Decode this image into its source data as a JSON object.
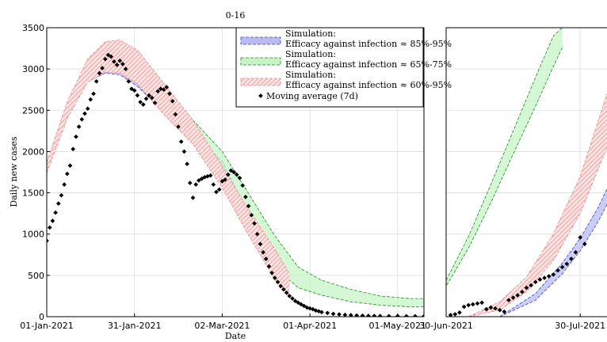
{
  "chart_data": [
    {
      "type": "line",
      "title": "0-16",
      "xlabel": "Date",
      "ylabel": "Daily new cases",
      "ylim": [
        0,
        3500
      ],
      "xlim": [
        "2021-01-01",
        "2021-05-10"
      ],
      "grid": true,
      "legend_position": "top-right",
      "x_ticks": [
        "2021-01-01",
        "2021-01-31",
        "2021-03-02",
        "2021-04-01",
        "2021-05-01"
      ],
      "x_tick_labels": [
        "01-Jan-2021",
        "31-Jan-2021",
        "02-Mar-2021",
        "01-Apr-2021",
        "01-May-2021"
      ],
      "y_ticks": [
        0,
        500,
        1000,
        1500,
        2000,
        2500,
        3000,
        3500
      ],
      "y_tick_labels": [
        "0",
        "500",
        "1000",
        "1500",
        "2000",
        "2500",
        "3000",
        "3500"
      ],
      "bands": [
        {
          "name": "Simulation:\nEfficacy against infection ≈ 85%-95%",
          "color": "#3d3dd6",
          "fill": "#b8bcf2",
          "pattern": "solid",
          "x": [
            "2021-01-01",
            "2021-01-08",
            "2021-01-15",
            "2021-01-21",
            "2021-01-26",
            "2021-02-01",
            "2021-02-10",
            "2021-02-20",
            "2021-03-02",
            "2021-03-08",
            "2021-03-15",
            "2021-03-20",
            "2021-03-25"
          ],
          "upper": [
            1800,
            2480,
            2900,
            3010,
            2990,
            2860,
            2550,
            2220,
            1880,
            1460,
            1000,
            650,
            400
          ],
          "lower": [
            1780,
            2430,
            2850,
            2950,
            2930,
            2790,
            2480,
            2150,
            1760,
            1360,
            930,
            600,
            360
          ]
        },
        {
          "name": "Simulation:\nEfficacy against infection ≈ 65%-75%",
          "color": "#1e8a1e",
          "fill": "#c6f4c6",
          "pattern": "solid",
          "x": [
            "2021-01-01",
            "2021-01-08",
            "2021-01-15",
            "2021-01-21",
            "2021-01-26",
            "2021-02-01",
            "2021-02-10",
            "2021-02-20",
            "2021-03-02",
            "2021-03-10",
            "2021-03-20",
            "2021-03-28",
            "2021-04-05",
            "2021-04-15",
            "2021-04-25",
            "2021-05-05",
            "2021-05-10"
          ],
          "upper": [
            1850,
            2560,
            3030,
            3250,
            3290,
            3170,
            2800,
            2380,
            2000,
            1550,
            980,
            600,
            440,
            330,
            250,
            220,
            220
          ],
          "lower": [
            1820,
            2500,
            2950,
            3130,
            3130,
            3000,
            2650,
            2240,
            1700,
            1150,
            600,
            350,
            260,
            180,
            140,
            120,
            120
          ]
        },
        {
          "name": "Simulation:\nEfficacy against infection ≈ 60%-95%",
          "color": "#e88a8a",
          "fill": "#f8c8c8",
          "pattern": "hatch",
          "x": [
            "2021-01-01",
            "2021-01-08",
            "2021-01-15",
            "2021-01-21",
            "2021-01-26",
            "2021-02-01",
            "2021-02-10",
            "2021-02-20",
            "2021-03-02",
            "2021-03-10",
            "2021-03-20",
            "2021-03-25"
          ],
          "upper": [
            1870,
            2600,
            3120,
            3330,
            3350,
            3230,
            2830,
            2380,
            1820,
            1350,
            820,
            520
          ],
          "lower": [
            1740,
            2400,
            2840,
            2960,
            2950,
            2820,
            2450,
            2090,
            1560,
            1050,
            450,
            260
          ]
        }
      ],
      "scatter": {
        "name": "Moving average (7d)",
        "color": "#000000",
        "x": [
          "2021-01-01",
          "2021-01-02",
          "2021-01-03",
          "2021-01-04",
          "2021-01-05",
          "2021-01-06",
          "2021-01-07",
          "2021-01-08",
          "2021-01-09",
          "2021-01-10",
          "2021-01-11",
          "2021-01-12",
          "2021-01-13",
          "2021-01-14",
          "2021-01-15",
          "2021-01-16",
          "2021-01-17",
          "2021-01-18",
          "2021-01-19",
          "2021-01-20",
          "2021-01-21",
          "2021-01-22",
          "2021-01-23",
          "2021-01-24",
          "2021-01-25",
          "2021-01-26",
          "2021-01-27",
          "2021-01-28",
          "2021-01-29",
          "2021-01-30",
          "2021-01-31",
          "2021-02-01",
          "2021-02-02",
          "2021-02-03",
          "2021-02-04",
          "2021-02-05",
          "2021-02-06",
          "2021-02-07",
          "2021-02-08",
          "2021-02-09",
          "2021-02-10",
          "2021-02-11",
          "2021-02-12",
          "2021-02-13",
          "2021-02-14",
          "2021-02-15",
          "2021-02-16",
          "2021-02-17",
          "2021-02-18",
          "2021-02-19",
          "2021-02-20",
          "2021-02-21",
          "2021-02-22",
          "2021-02-23",
          "2021-02-24",
          "2021-02-25",
          "2021-02-26",
          "2021-02-27",
          "2021-02-28",
          "2021-03-01",
          "2021-03-02",
          "2021-03-03",
          "2021-03-04",
          "2021-03-05",
          "2021-03-06",
          "2021-03-07",
          "2021-03-08",
          "2021-03-09",
          "2021-03-10",
          "2021-03-11",
          "2021-03-12",
          "2021-03-13",
          "2021-03-14",
          "2021-03-15",
          "2021-03-16",
          "2021-03-17",
          "2021-03-18",
          "2021-03-19",
          "2021-03-20",
          "2021-03-21",
          "2021-03-22",
          "2021-03-23",
          "2021-03-24",
          "2021-03-25",
          "2021-03-26",
          "2021-03-27",
          "2021-03-28",
          "2021-03-29",
          "2021-03-30",
          "2021-03-31",
          "2021-04-01",
          "2021-04-02",
          "2021-04-03",
          "2021-04-04",
          "2021-04-05",
          "2021-04-07",
          "2021-04-09",
          "2021-04-11",
          "2021-04-13",
          "2021-04-15",
          "2021-04-17",
          "2021-04-19",
          "2021-04-21",
          "2021-04-23",
          "2021-04-25",
          "2021-04-28",
          "2021-05-01",
          "2021-05-04",
          "2021-05-07",
          "2021-05-10"
        ],
        "y": [
          920,
          1080,
          1160,
          1260,
          1370,
          1470,
          1600,
          1730,
          1830,
          2030,
          2180,
          2300,
          2390,
          2460,
          2520,
          2630,
          2700,
          2850,
          2950,
          3010,
          3120,
          3170,
          3150,
          3090,
          3050,
          3100,
          3060,
          3000,
          2850,
          2760,
          2740,
          2680,
          2600,
          2570,
          2640,
          2680,
          2650,
          2590,
          2730,
          2760,
          2750,
          2780,
          2700,
          2610,
          2450,
          2300,
          2120,
          2000,
          1850,
          1620,
          1440,
          1600,
          1650,
          1670,
          1690,
          1700,
          1710,
          1600,
          1510,
          1540,
          1640,
          1660,
          1720,
          1770,
          1750,
          1720,
          1680,
          1590,
          1450,
          1340,
          1230,
          1130,
          1000,
          880,
          780,
          700,
          610,
          530,
          470,
          420,
          370,
          330,
          290,
          250,
          220,
          190,
          170,
          150,
          130,
          110,
          100,
          90,
          75,
          65,
          55,
          45,
          35,
          28,
          22,
          18,
          14,
          12,
          10,
          9,
          8,
          7,
          7,
          6,
          6,
          6
        ]
      }
    },
    {
      "type": "line",
      "title": "",
      "xlabel": "",
      "ylabel": "",
      "ylim": [
        0,
        3500
      ],
      "xlim": [
        "2021-06-30",
        "2021-08-05"
      ],
      "grid": true,
      "x_ticks": [
        "2021-06-30",
        "2021-07-30"
      ],
      "x_tick_labels": [
        "30-Jun-2021",
        "30-Jul-2021"
      ],
      "bands": [
        {
          "name": "Simulation:\nEfficacy against infection ≈ 85%-95%",
          "color": "#3d3dd6",
          "fill": "#b8bcf2",
          "pattern": "solid",
          "x": [
            "2021-07-12",
            "2021-07-20",
            "2021-07-26",
            "2021-07-30",
            "2021-08-03",
            "2021-08-05"
          ],
          "upper": [
            0,
            280,
            650,
            950,
            1320,
            1550
          ],
          "lower": [
            0,
            200,
            520,
            800,
            1150,
            1360
          ]
        },
        {
          "name": "Simulation:\nEfficacy against infection ≈ 65%-75%",
          "color": "#1e8a1e",
          "fill": "#c6f4c6",
          "pattern": "solid",
          "x": [
            "2021-06-30",
            "2021-07-05",
            "2021-07-10",
            "2021-07-15",
            "2021-07-20",
            "2021-07-24",
            "2021-07-26"
          ],
          "upper": [
            440,
            970,
            1600,
            2250,
            2900,
            3400,
            3500
          ],
          "lower": [
            370,
            830,
            1380,
            1970,
            2550,
            3030,
            3260
          ]
        },
        {
          "name": "Simulation:\nEfficacy against infection ≈ 60%-95%",
          "color": "#e88a8a",
          "fill": "#f8c8c8",
          "pattern": "hatch",
          "x": [
            "2021-07-05",
            "2021-07-12",
            "2021-07-18",
            "2021-07-24",
            "2021-07-30",
            "2021-08-05"
          ],
          "upper": [
            0,
            180,
            480,
            1000,
            1700,
            2700
          ],
          "lower": [
            0,
            80,
            300,
            680,
            1250,
            2050
          ]
        }
      ],
      "scatter": {
        "name": "Moving average (7d)",
        "color": "#000000",
        "x": [
          "2021-07-01",
          "2021-07-02",
          "2021-07-03",
          "2021-07-04",
          "2021-07-05",
          "2021-07-06",
          "2021-07-07",
          "2021-07-08",
          "2021-07-09",
          "2021-07-10",
          "2021-07-11",
          "2021-07-12",
          "2021-07-13",
          "2021-07-14",
          "2021-07-15",
          "2021-07-16",
          "2021-07-17",
          "2021-07-18",
          "2021-07-19",
          "2021-07-20",
          "2021-07-21",
          "2021-07-22",
          "2021-07-23",
          "2021-07-24",
          "2021-07-25",
          "2021-07-26",
          "2021-07-27",
          "2021-07-28",
          "2021-07-29",
          "2021-07-30",
          "2021-07-31"
        ],
        "y": [
          20,
          30,
          50,
          120,
          140,
          150,
          160,
          170,
          90,
          110,
          100,
          80,
          60,
          200,
          230,
          260,
          300,
          350,
          380,
          420,
          450,
          470,
          490,
          510,
          560,
          600,
          640,
          700,
          780,
          960,
          880
        ]
      }
    }
  ]
}
